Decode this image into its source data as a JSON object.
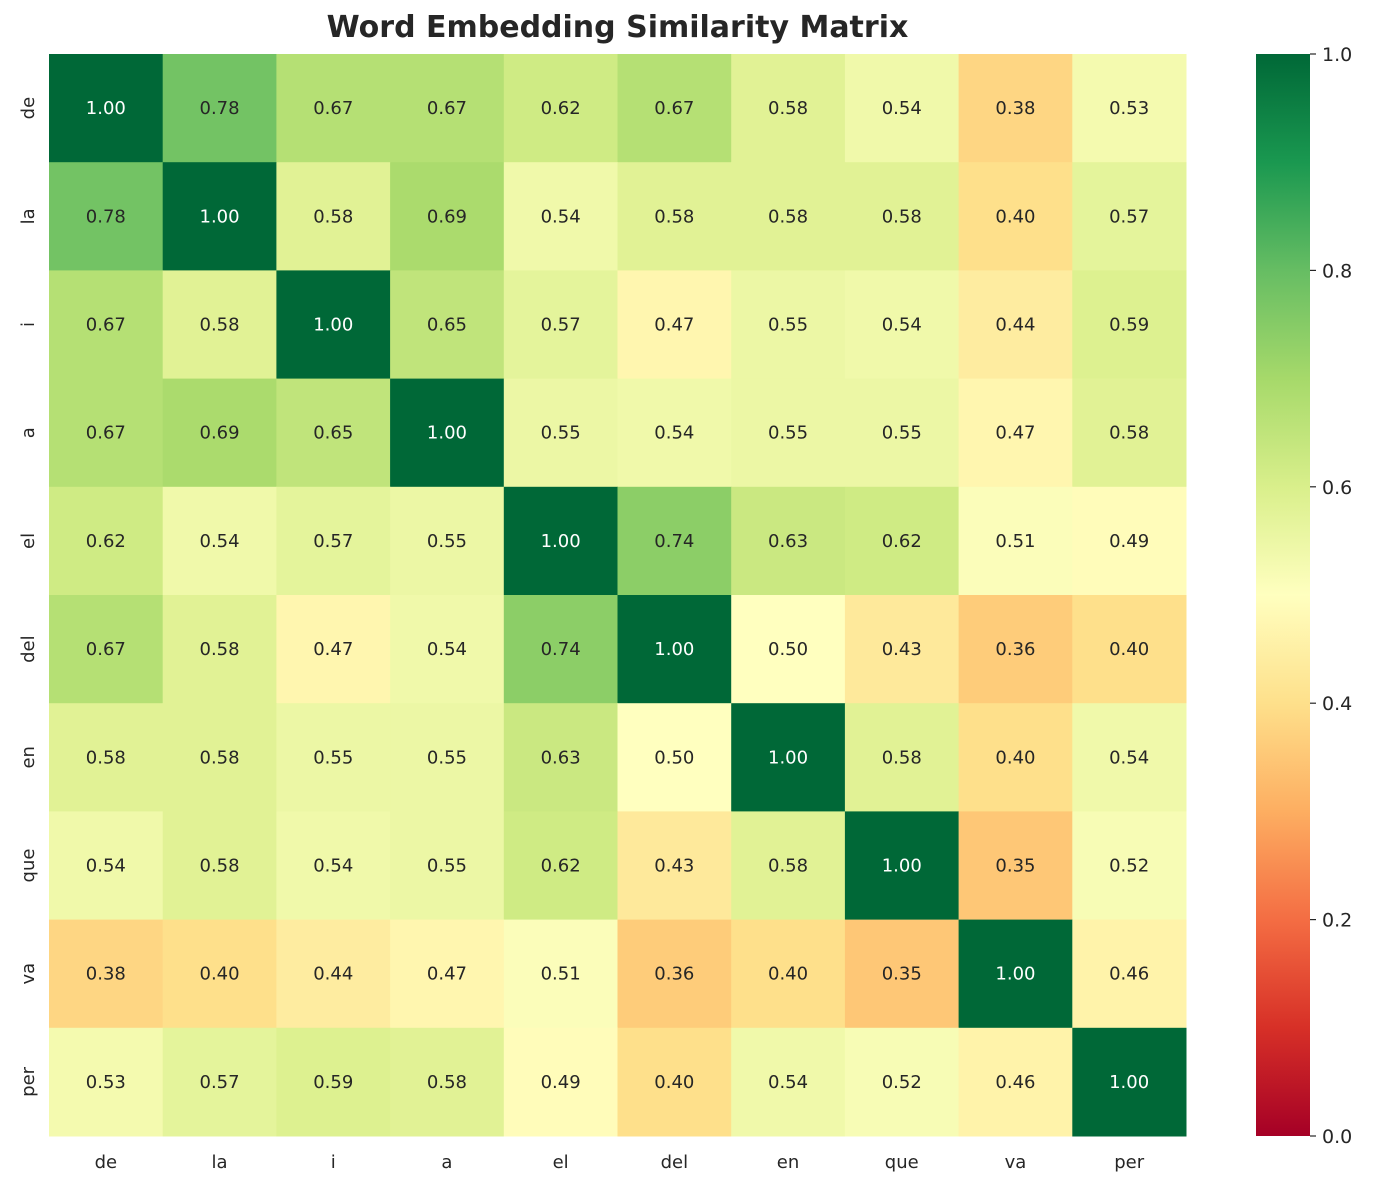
{
  "chart_data": {
    "type": "heatmap",
    "title": "Word Embedding Similarity Matrix",
    "x_labels": [
      "de",
      "la",
      "i",
      "a",
      "el",
      "del",
      "en",
      "que",
      "va",
      "per"
    ],
    "y_labels": [
      "de",
      "la",
      "i",
      "a",
      "el",
      "del",
      "en",
      "que",
      "va",
      "per"
    ],
    "values": [
      [
        1.0,
        0.78,
        0.67,
        0.67,
        0.62,
        0.67,
        0.58,
        0.54,
        0.38,
        0.53
      ],
      [
        0.78,
        1.0,
        0.58,
        0.69,
        0.54,
        0.58,
        0.58,
        0.58,
        0.4,
        0.57
      ],
      [
        0.67,
        0.58,
        1.0,
        0.65,
        0.57,
        0.47,
        0.55,
        0.54,
        0.44,
        0.59
      ],
      [
        0.67,
        0.69,
        0.65,
        1.0,
        0.55,
        0.54,
        0.55,
        0.55,
        0.47,
        0.58
      ],
      [
        0.62,
        0.54,
        0.57,
        0.55,
        1.0,
        0.74,
        0.63,
        0.62,
        0.51,
        0.49
      ],
      [
        0.67,
        0.58,
        0.47,
        0.54,
        0.74,
        1.0,
        0.5,
        0.43,
        0.36,
        0.4
      ],
      [
        0.58,
        0.58,
        0.55,
        0.55,
        0.63,
        0.5,
        1.0,
        0.58,
        0.4,
        0.54
      ],
      [
        0.54,
        0.58,
        0.54,
        0.55,
        0.62,
        0.43,
        0.58,
        1.0,
        0.35,
        0.52
      ],
      [
        0.38,
        0.4,
        0.44,
        0.47,
        0.51,
        0.36,
        0.4,
        0.35,
        1.0,
        0.46
      ],
      [
        0.53,
        0.57,
        0.59,
        0.58,
        0.49,
        0.4,
        0.54,
        0.52,
        0.46,
        1.0
      ]
    ],
    "colormap": "RdYlGn",
    "vmin": 0.0,
    "vmax": 1.0,
    "colorbar_ticks": [
      "0.0",
      "0.2",
      "0.4",
      "0.6",
      "0.8",
      "1.0"
    ],
    "annotation_format": "0.00",
    "text_color_dark": "#262626",
    "text_color_light": "#ffffff"
  }
}
